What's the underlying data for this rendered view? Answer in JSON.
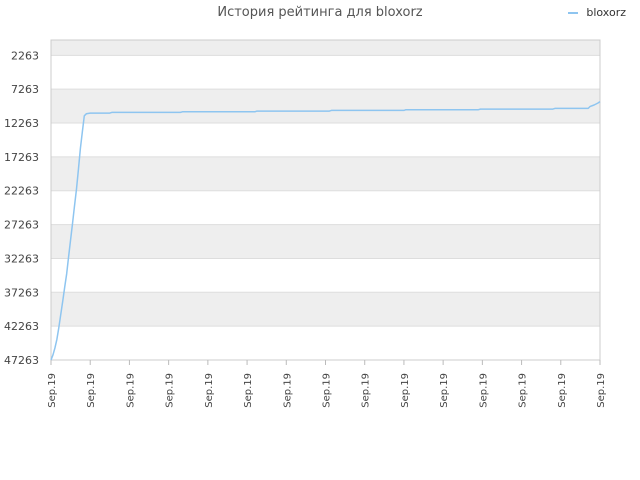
{
  "chart_data": {
    "type": "line",
    "title": "История рейтинга для bloxorz",
    "xlabel": "",
    "ylabel": "",
    "y_inverted": true,
    "ylim": [
      47263,
      0
    ],
    "y_ticks": [
      2263,
      7263,
      12263,
      17263,
      22263,
      27263,
      32263,
      37263,
      42263,
      47263
    ],
    "x_tick_labels": [
      "Sep.19",
      "Sep.19",
      "Sep.19",
      "Sep.19",
      "Sep.19",
      "Sep.19",
      "Sep.19",
      "Sep.19",
      "Sep.19",
      "Sep.19",
      "Sep.19",
      "Sep.19",
      "Sep.19",
      "Sep.19",
      "Sep.19"
    ],
    "grid": true,
    "legend_position": "top-right",
    "series": [
      {
        "name": "bloxorz",
        "color": "#8ec5f0",
        "points": [
          [
            0.0,
            47263
          ],
          [
            0.05,
            46500
          ],
          [
            0.1,
            45500
          ],
          [
            0.15,
            44200
          ],
          [
            0.2,
            42500
          ],
          [
            0.25,
            40500
          ],
          [
            0.3,
            38500
          ],
          [
            0.35,
            36500
          ],
          [
            0.4,
            34500
          ],
          [
            0.45,
            32000
          ],
          [
            0.5,
            29500
          ],
          [
            0.55,
            27000
          ],
          [
            0.6,
            24500
          ],
          [
            0.65,
            22000
          ],
          [
            0.7,
            19000
          ],
          [
            0.75,
            16000
          ],
          [
            0.8,
            13500
          ],
          [
            0.85,
            11200
          ],
          [
            0.9,
            10900
          ],
          [
            1.0,
            10800
          ],
          [
            1.5,
            10800
          ],
          [
            1.55,
            10700
          ],
          [
            3.3,
            10700
          ],
          [
            3.35,
            10600
          ],
          [
            5.2,
            10600
          ],
          [
            5.25,
            10500
          ],
          [
            7.1,
            10500
          ],
          [
            7.15,
            10400
          ],
          [
            9.0,
            10400
          ],
          [
            9.05,
            10300
          ],
          [
            10.9,
            10300
          ],
          [
            10.95,
            10200
          ],
          [
            12.8,
            10200
          ],
          [
            12.85,
            10100
          ],
          [
            13.7,
            10100
          ],
          [
            13.75,
            9800
          ],
          [
            13.85,
            9600
          ],
          [
            13.95,
            9300
          ],
          [
            14.0,
            9100
          ]
        ]
      }
    ]
  }
}
